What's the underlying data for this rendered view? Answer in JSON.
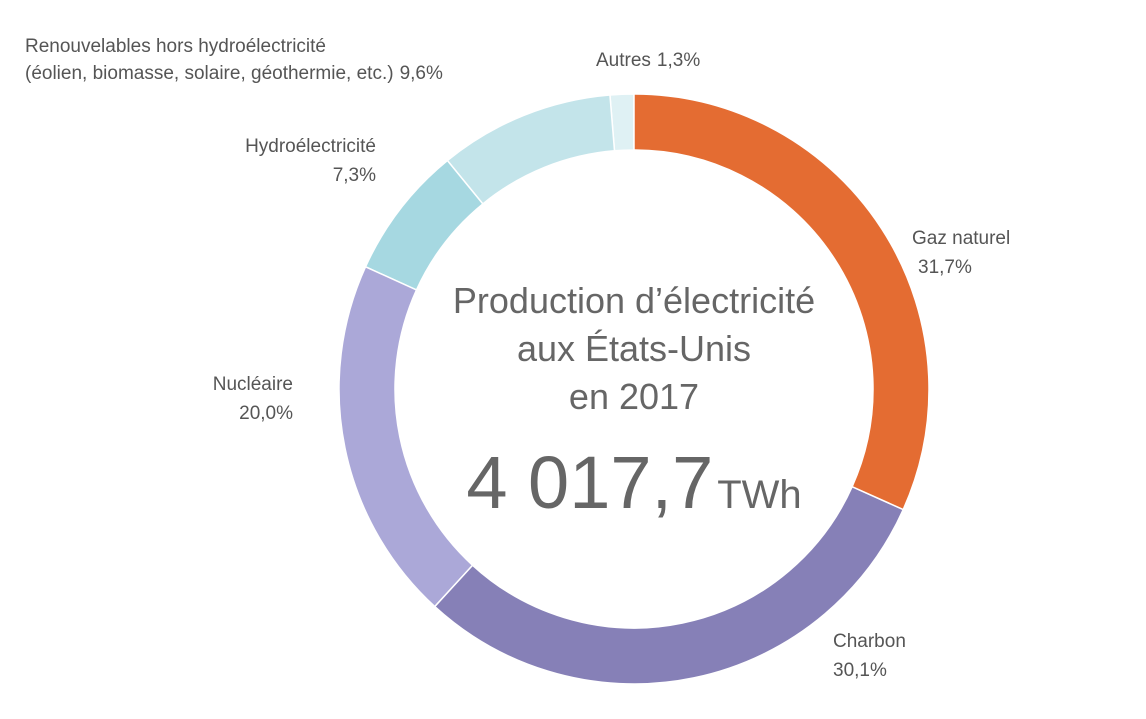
{
  "chart_data": {
    "type": "donut",
    "title": [
      "Production d’électricité",
      "aux États-Unis",
      "en 2017"
    ],
    "total": {
      "value": 4017.7,
      "label": "4 017,7"
    },
    "unit": "TWh",
    "categories": [
      "Gaz naturel",
      "Charbon",
      "Nucléaire",
      "Hydroélectricité",
      "Renouvelables hors hydroélectricité (éolien, biomasse, solaire, géothermie, etc.)",
      "Autres"
    ],
    "values": [
      31.7,
      30.1,
      20.0,
      7.3,
      9.6,
      1.3
    ],
    "value_labels": [
      "31,7%",
      "30,1%",
      "20,0%",
      "7,3%",
      "9,6%",
      "1,3%"
    ],
    "colors": [
      "#e46c32",
      "#8680b7",
      "#aba8d8",
      "#a6d8e1",
      "#c3e4ea",
      "#dff1f4"
    ]
  }
}
